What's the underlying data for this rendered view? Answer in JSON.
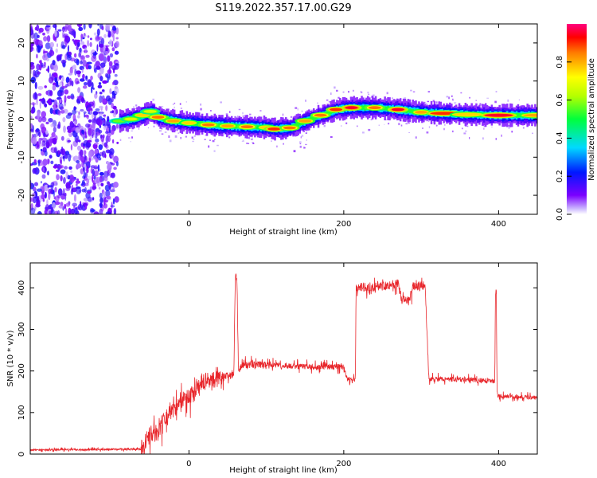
{
  "title": "S119.2022.357.17.00.G29",
  "chart_data": [
    {
      "type": "heatmap",
      "xlabel": "Height of straight line (km)",
      "ylabel": "Frequency (Hz)",
      "xlim": [
        -205,
        450
      ],
      "ylim": [
        -25,
        25
      ],
      "xticks": [
        0,
        200,
        400
      ],
      "xtick_labels": [
        "0",
        "200",
        "400"
      ],
      "yticks": [
        -20,
        -10,
        0,
        10,
        20
      ],
      "ytick_labels": [
        "-20",
        "-10",
        "0",
        "10",
        "20"
      ],
      "noise_region_x": [
        -205,
        -92
      ],
      "ridge": {
        "x": [
          -90,
          -75,
          -60,
          -50,
          -40,
          -20,
          0,
          25,
          50,
          75,
          100,
          110,
          130,
          150,
          170,
          190,
          210,
          240,
          270,
          300,
          330,
          360,
          400,
          450
        ],
        "y": [
          -0.5,
          0.0,
          1.0,
          2.0,
          0.5,
          -0.5,
          -1.0,
          -1.5,
          -1.8,
          -2.0,
          -2.2,
          -2.6,
          -2.3,
          -0.5,
          1.0,
          2.5,
          3.0,
          3.0,
          2.5,
          1.8,
          1.5,
          1.2,
          1.0,
          1.0
        ],
        "amplitude": [
          0.6,
          0.7,
          0.8,
          0.7,
          0.9,
          0.85,
          0.8,
          0.9,
          0.85,
          0.9,
          0.8,
          0.95,
          0.9,
          0.85,
          0.9,
          0.95,
          1.0,
          0.9,
          1.0,
          0.85,
          0.95,
          0.8,
          1.0,
          0.85
        ]
      },
      "colorbar": {
        "label": "Normalized spectral amplitude",
        "range": [
          0,
          1
        ],
        "ticks": [
          0.0,
          0.2,
          0.4,
          0.6,
          0.8
        ],
        "tick_labels": [
          "0.0",
          "0.2",
          "0.4",
          "0.6",
          "0.8"
        ]
      },
      "grid": false
    },
    {
      "type": "line",
      "xlabel": "Height of straight line (km)",
      "ylabel": "SNR (10 * v/v)",
      "xlim": [
        -205,
        450
      ],
      "ylim": [
        0,
        460
      ],
      "xticks": [
        0,
        200,
        400
      ],
      "xtick_labels": [
        "0",
        "200",
        "400"
      ],
      "yticks": [
        0,
        100,
        200,
        300,
        400
      ],
      "ytick_labels": [
        "0",
        "100",
        "200",
        "300",
        "400"
      ],
      "series": [
        {
          "color": "#e8262b",
          "x": [
            -205,
            -60,
            -55,
            -40,
            -20,
            0,
            20,
            40,
            58,
            60,
            62,
            64,
            70,
            100,
            150,
            200,
            205,
            215,
            216,
            250,
            270,
            275,
            285,
            290,
            300,
            305,
            310,
            350,
            395,
            396,
            397,
            398,
            400,
            450
          ],
          "y": [
            10,
            12,
            40,
            60,
            110,
            140,
            170,
            185,
            190,
            440,
            420,
            200,
            215,
            215,
            210,
            210,
            180,
            180,
            400,
            405,
            410,
            370,
            370,
            405,
            405,
            405,
            180,
            180,
            175,
            395,
            395,
            150,
            140,
            135
          ]
        }
      ],
      "grid": false
    }
  ]
}
